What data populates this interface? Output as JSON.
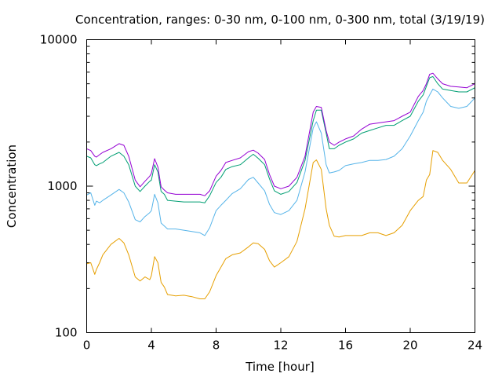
{
  "chart_data": {
    "type": "line",
    "title": "Concentration, ranges: 0-30 nm, 0-100 nm, 0-300 nm, total (3/19/19)",
    "xlabel": "Time [hour]",
    "ylabel": "Concentration",
    "xlim": [
      0,
      24
    ],
    "ylim": [
      100,
      10000
    ],
    "yscale": "log",
    "grid": false,
    "x_ticks": [
      0,
      4,
      8,
      12,
      16,
      20,
      24
    ],
    "x_tick_labels": [
      "0",
      "4",
      "8",
      "12",
      "16",
      "20",
      "24"
    ],
    "y_ticks": [
      100,
      1000,
      10000
    ],
    "y_tick_labels": [
      "100",
      "1000",
      "10000"
    ],
    "x": [
      0,
      0.25,
      0.5,
      0.6,
      0.8,
      1,
      1.5,
      2,
      2.3,
      2.6,
      3,
      3.3,
      3.6,
      3.9,
      4,
      4.2,
      4.4,
      4.6,
      4.8,
      5,
      5.5,
      6,
      6.5,
      7,
      7.3,
      7.6,
      8,
      8.3,
      8.6,
      9,
      9.5,
      10,
      10.3,
      10.6,
      11,
      11.3,
      11.6,
      12,
      12.5,
      13,
      13.5,
      14,
      14.2,
      14.5,
      14.8,
      15,
      15.3,
      15.6,
      16,
      16.5,
      17,
      17.5,
      18,
      18.5,
      19,
      19.5,
      20,
      20.5,
      20.8,
      21,
      21.2,
      21.4,
      21.7,
      22,
      22.5,
      23,
      23.5,
      24
    ],
    "series": [
      {
        "color": "#e69f00",
        "values": [
          295,
          300,
          250,
          270,
          300,
          340,
          400,
          440,
          410,
          340,
          240,
          225,
          240,
          230,
          245,
          330,
          300,
          220,
          205,
          182,
          178,
          180,
          176,
          170,
          170,
          190,
          245,
          280,
          320,
          340,
          350,
          385,
          410,
          405,
          370,
          310,
          280,
          300,
          330,
          420,
          700,
          1450,
          1510,
          1300,
          700,
          540,
          455,
          450,
          460,
          460,
          460,
          480,
          480,
          460,
          480,
          540,
          680,
          800,
          850,
          1100,
          1200,
          1750,
          1700,
          1500,
          1300,
          1050,
          1050,
          1280
        ]
      },
      {
        "color": "#56b4e9",
        "values": [
          870,
          900,
          740,
          790,
          770,
          800,
          870,
          950,
          900,
          780,
          590,
          570,
          620,
          660,
          680,
          880,
          770,
          560,
          535,
          510,
          510,
          500,
          490,
          480,
          460,
          520,
          680,
          740,
          800,
          890,
          960,
          1110,
          1150,
          1050,
          930,
          750,
          660,
          640,
          680,
          800,
          1250,
          2500,
          2750,
          2300,
          1400,
          1230,
          1250,
          1280,
          1380,
          1420,
          1450,
          1500,
          1500,
          1520,
          1600,
          1800,
          2200,
          2800,
          3200,
          3800,
          4200,
          4600,
          4400,
          4000,
          3500,
          3400,
          3500,
          4000
        ]
      },
      {
        "color": "#009e73",
        "values": [
          1600,
          1560,
          1400,
          1380,
          1420,
          1450,
          1600,
          1700,
          1600,
          1400,
          1000,
          920,
          1000,
          1080,
          1100,
          1400,
          1250,
          920,
          880,
          800,
          790,
          780,
          780,
          780,
          770,
          860,
          1060,
          1150,
          1300,
          1360,
          1400,
          1560,
          1650,
          1550,
          1400,
          1120,
          930,
          880,
          920,
          1060,
          1500,
          2800,
          3300,
          3300,
          2300,
          1800,
          1800,
          1900,
          2000,
          2100,
          2300,
          2400,
          2500,
          2600,
          2600,
          2800,
          3000,
          3800,
          4200,
          4800,
          5500,
          5600,
          5000,
          4600,
          4500,
          4400,
          4400,
          4700
        ]
      },
      {
        "color": "#9400d3",
        "values": [
          1800,
          1750,
          1600,
          1580,
          1640,
          1700,
          1800,
          1950,
          1900,
          1600,
          1100,
          990,
          1080,
          1170,
          1220,
          1540,
          1350,
          990,
          940,
          900,
          880,
          880,
          880,
          880,
          860,
          930,
          1170,
          1280,
          1450,
          1500,
          1560,
          1720,
          1760,
          1680,
          1520,
          1200,
          1000,
          960,
          1000,
          1150,
          1600,
          3200,
          3500,
          3450,
          2400,
          2000,
          1900,
          2000,
          2100,
          2200,
          2450,
          2650,
          2700,
          2750,
          2800,
          3000,
          3200,
          4100,
          4500,
          5000,
          5800,
          5900,
          5400,
          5000,
          4800,
          4750,
          4700,
          5000
        ]
      }
    ]
  }
}
